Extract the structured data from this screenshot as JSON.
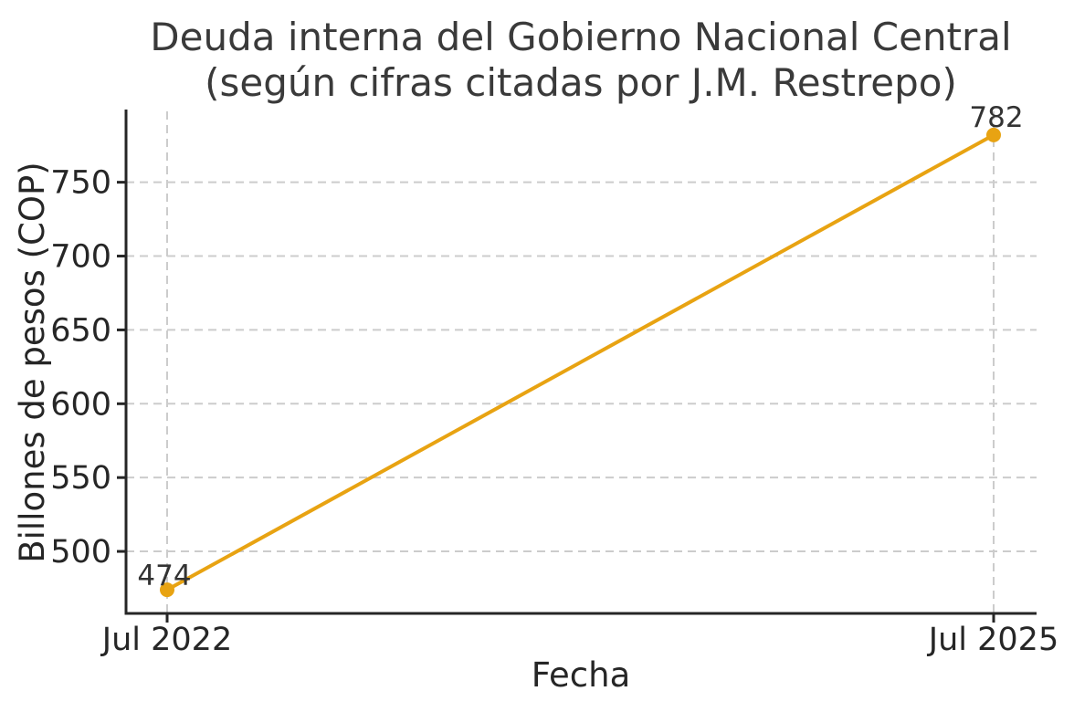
{
  "chart_data": {
    "type": "line",
    "title": "Deuda interna del Gobierno Nacional Central (según cifras citadas por J.M. Restrepo)",
    "title_lines": [
      "Deuda interna del Gobierno Nacional Central",
      "(según cifras citadas por J.M. Restrepo)"
    ],
    "xlabel": "Fecha",
    "ylabel": "Billones de pesos (COP)",
    "x": [
      "Jul 2022",
      "Jul 2025"
    ],
    "series": [
      {
        "name": "Deuda interna",
        "values": [
          474,
          782
        ]
      }
    ],
    "point_labels": [
      "474",
      "782"
    ],
    "yticks": [
      500,
      550,
      600,
      650,
      700,
      750
    ],
    "ylim": [
      458,
      798
    ],
    "grid": "dashed-both-axes",
    "legend": "none",
    "colors": {
      "line": "#E8A312",
      "marker": "#E8A312",
      "grid": "#cccccc",
      "spine": "#262626",
      "title_text": "#3a3a3a",
      "tick_text": "#262626",
      "background": "#ffffff"
    }
  }
}
